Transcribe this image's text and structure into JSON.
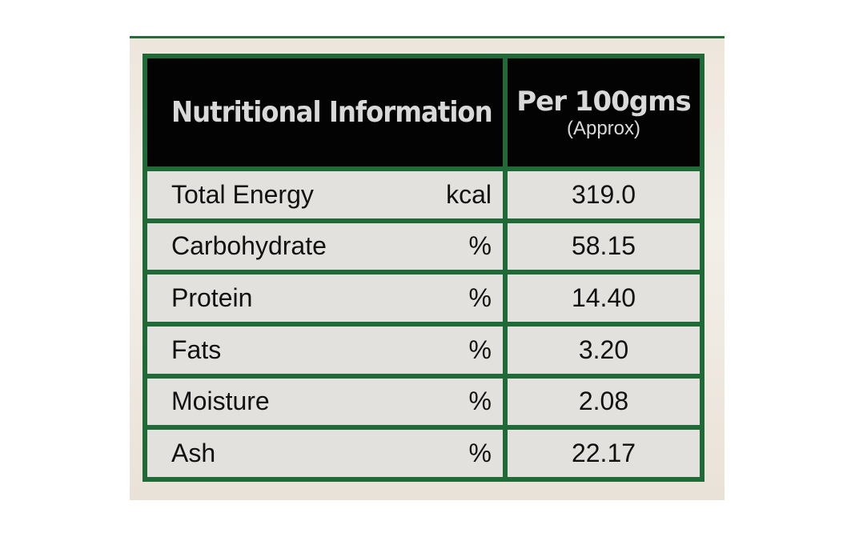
{
  "header": {
    "title": "Nutritional Information",
    "per": "Per 100gms",
    "note": "(Approx)"
  },
  "table": {
    "rows": [
      [
        "Total Energy",
        "kcal",
        "319.0"
      ],
      [
        "Carbohydrate",
        "%",
        "58.15"
      ],
      [
        "Protein",
        "%",
        "14.40"
      ],
      [
        "Fats",
        "%",
        "3.20"
      ],
      [
        "Moisture",
        "%",
        "2.08"
      ],
      [
        "Ash",
        "%",
        "22.17"
      ]
    ]
  }
}
